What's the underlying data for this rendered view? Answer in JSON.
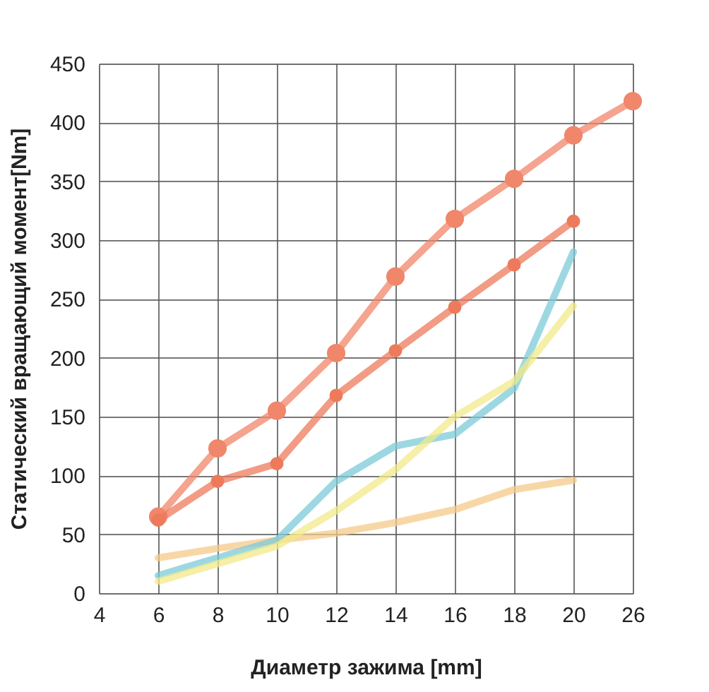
{
  "chart_data": {
    "type": "line",
    "xlabel": "Диаметр зажима [mm]",
    "ylabel": "Статический вращающий момент[Nm]",
    "categories": [
      "4",
      "6",
      "8",
      "10",
      "12",
      "14",
      "16",
      "18",
      "20",
      "26"
    ],
    "ylim": [
      0,
      450
    ],
    "yticks": [
      0,
      50,
      100,
      150,
      200,
      250,
      300,
      350,
      400,
      450
    ],
    "grid": true,
    "legend": false,
    "line_style": "solid",
    "series": [
      {
        "color": "#f0866a",
        "marker": "circle",
        "values": [
          null,
          65,
          123,
          155,
          204,
          269,
          318,
          352,
          389,
          418
        ]
      },
      {
        "color": "#ee7a5c",
        "marker": "circle",
        "values": [
          null,
          62,
          95,
          110,
          168,
          206,
          243,
          279,
          316,
          null
        ]
      },
      {
        "color": "#f6c98a",
        "marker": "none",
        "values": [
          null,
          30,
          38,
          45,
          51,
          60,
          71,
          88,
          96,
          null
        ]
      },
      {
        "color": "#7ccbd8",
        "marker": "none",
        "values": [
          null,
          15,
          30,
          45,
          95,
          125,
          135,
          174,
          290,
          null
        ]
      },
      {
        "color": "#f1e98a",
        "marker": "none",
        "values": [
          null,
          10,
          25,
          40,
          70,
          105,
          150,
          180,
          244,
          null
        ]
      }
    ]
  }
}
